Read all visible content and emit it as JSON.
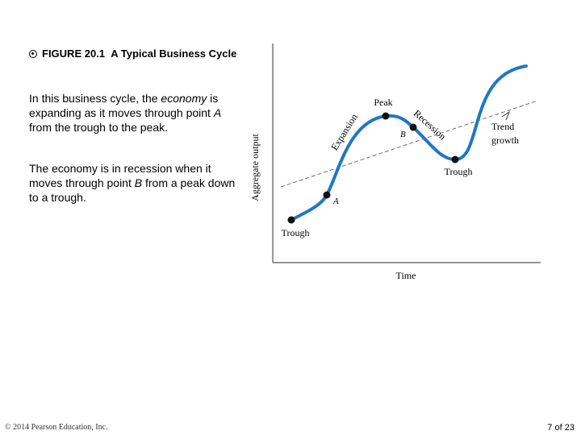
{
  "figure": {
    "number": "FIGURE 20.1",
    "title": "A Typical Business Cycle",
    "icon": "target-icon"
  },
  "text": {
    "para1": {
      "before": "In this business cycle, the ",
      "italic1": "economy",
      "middle": " is expanding as it moves through point ",
      "italic2": "A",
      "after": " from the trough to the peak."
    },
    "para2": {
      "before": "The economy is in recession when it moves through point ",
      "italic": "B",
      "after": " from a peak down to a trough."
    }
  },
  "diagram": {
    "y_axis_label": "Aggregate output",
    "x_axis_label": "Time",
    "labels": {
      "peak": "Peak",
      "trough_left": "Trough",
      "trough_right": "Trough",
      "expansion": "Expansion",
      "recession": "Recession",
      "point_a": "A",
      "point_b": "B",
      "trend_line1": "Trend",
      "trend_line2": "growth"
    },
    "colors": {
      "curve": "#1f78c4",
      "trend": "#6d6d6d",
      "axis": "#555555"
    }
  },
  "footer": {
    "copyright": "© 2014 Pearson Education, Inc.",
    "page": "7 of 23"
  }
}
